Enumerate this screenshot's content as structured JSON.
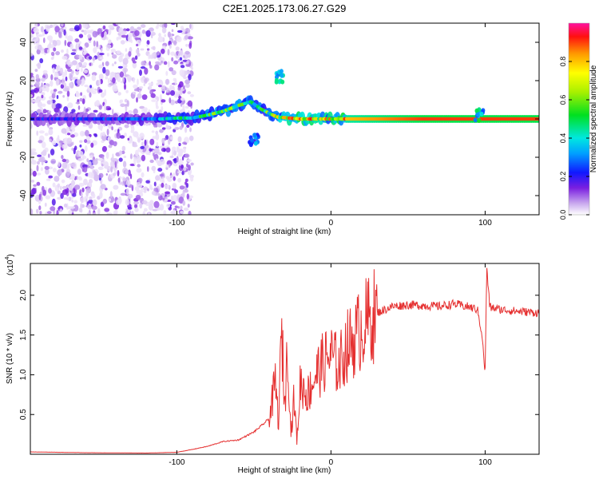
{
  "page_title": "C2E1.2025.173.06.27.G29",
  "colors": {
    "snr_line": "#e53030",
    "axis": "#000000",
    "frame_bg": "#ffffff"
  },
  "chart_data": [
    {
      "type": "heatmap",
      "xlabel": "Height of straight line (km)",
      "ylabel": "Frequency (Hz)",
      "xlim": [
        -195,
        135
      ],
      "ylim": [
        -50,
        50
      ],
      "x_ticks": [
        -100,
        0,
        100
      ],
      "x_tick_labels": [
        "-100",
        "0",
        "100"
      ],
      "y_ticks": [
        -40,
        -20,
        0,
        20,
        40
      ],
      "y_tick_labels": [
        "-40",
        "-20",
        "0",
        "20",
        "40"
      ],
      "colorbar": {
        "label": "Normalized spectral amplitude",
        "range": [
          0,
          1
        ],
        "ticks": [
          0.0,
          0.2,
          0.4,
          0.6,
          0.8
        ],
        "tick_labels": [
          "0.0",
          "0.2",
          "0.4",
          "0.6",
          "0.8"
        ]
      },
      "ridge": [
        {
          "x": -195,
          "freq": 0,
          "amp": 0.2
        },
        {
          "x": -150,
          "freq": 0,
          "amp": 0.22
        },
        {
          "x": -110,
          "freq": 0,
          "amp": 0.3
        },
        {
          "x": -100,
          "freq": 0.5,
          "amp": 0.45
        },
        {
          "x": -90,
          "freq": 0.5,
          "amp": 0.35
        },
        {
          "x": -80,
          "freq": 2,
          "amp": 0.55
        },
        {
          "x": -70,
          "freq": 4,
          "amp": 0.55
        },
        {
          "x": -60,
          "freq": 7,
          "amp": 0.5
        },
        {
          "x": -52,
          "freq": 9,
          "amp": 0.55
        },
        {
          "x": -45,
          "freq": 5,
          "amp": 0.45
        },
        {
          "x": -35,
          "freq": 1,
          "amp": 0.65
        },
        {
          "x": -20,
          "freq": 0,
          "amp": 0.75
        },
        {
          "x": 0,
          "freq": 0,
          "amp": 0.75
        },
        {
          "x": 10,
          "freq": 0,
          "amp": 0.8
        },
        {
          "x": 60,
          "freq": 0,
          "amp": 0.9
        },
        {
          "x": 135,
          "freq": 0,
          "amp": 0.9
        }
      ],
      "branches": [
        {
          "x": -34,
          "freq": 22,
          "amp": 0.45
        },
        {
          "x": -50,
          "freq": -11,
          "amp": 0.35
        },
        {
          "x": 96,
          "freq": 2,
          "amp": 0.5
        }
      ]
    },
    {
      "type": "line",
      "xlabel": "Height of straight line (km)",
      "ylabel": "SNR (10 * v/v)",
      "y_multiplier": "(x10",
      "y_multiplier_exp": "4",
      "xlim": [
        -195,
        135
      ],
      "ylim": [
        0,
        24000
      ],
      "x_ticks": [
        -100,
        0,
        100
      ],
      "x_tick_labels": [
        "-100",
        "0",
        "100"
      ],
      "y_ticks": [
        5000,
        10000,
        15000,
        20000
      ],
      "y_tick_labels": [
        "0.5",
        "1.0",
        "1.5",
        "2.0"
      ],
      "series": [
        {
          "x": [
            -195,
            -160,
            -120,
            -100,
            -90,
            -80,
            -70,
            -60,
            -50,
            -45,
            -40,
            -36,
            -34,
            -32,
            -30,
            -28,
            -26,
            -24,
            -22,
            -20,
            -15,
            -10,
            -5,
            0,
            5,
            10,
            15,
            20,
            25,
            30,
            40,
            50,
            60,
            70,
            80,
            90,
            95,
            98,
            100,
            101,
            103,
            110,
            120,
            135
          ],
          "y": [
            300,
            200,
            150,
            250,
            600,
            1000,
            1600,
            1800,
            2800,
            3600,
            4500,
            9000,
            4000,
            15500,
            6000,
            14000,
            2500,
            7000,
            1500,
            9000,
            7500,
            10000,
            11500,
            12500,
            11000,
            13500,
            14500,
            16000,
            17000,
            17800,
            18600,
            18800,
            18700,
            18600,
            18900,
            18500,
            18200,
            15000,
            10000,
            23500,
            18500,
            18200,
            18000,
            17800
          ]
        }
      ]
    }
  ]
}
